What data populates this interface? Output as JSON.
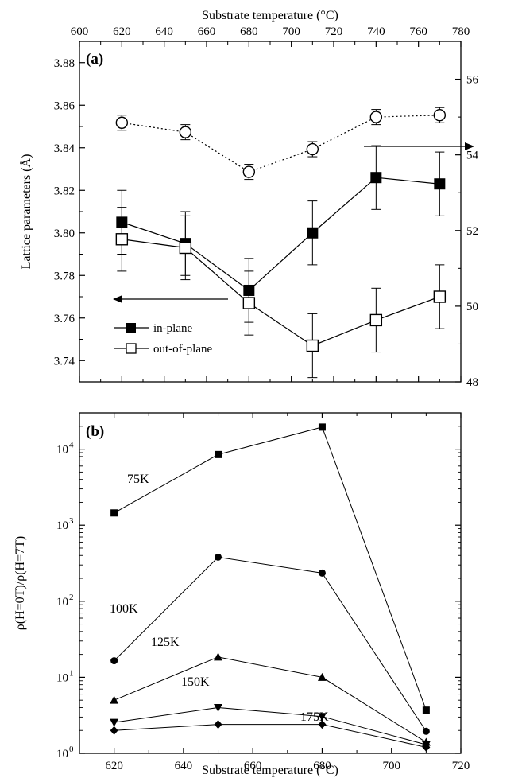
{
  "chart_data": [
    {
      "panel": "(a)",
      "type": "scatter",
      "xlabel_top": "Substrate temperature (°C)",
      "ylabel": "Lattice parameters (Å)",
      "x_ticks": [
        600,
        620,
        640,
        660,
        680,
        700,
        720,
        740,
        760,
        780
      ],
      "xlim": [
        600,
        780
      ],
      "ylim": [
        3.73,
        3.89
      ],
      "y_ticks": [
        3.74,
        3.76,
        3.78,
        3.8,
        3.82,
        3.84,
        3.86,
        3.88
      ],
      "y2lim": [
        48,
        57
      ],
      "y2_ticks": [
        48,
        50,
        52,
        54,
        56
      ],
      "series": [
        {
          "name": "in-plane",
          "marker": "filled-square",
          "axis": "left",
          "x": [
            620,
            650,
            680,
            710,
            740,
            770
          ],
          "y": [
            3.805,
            3.795,
            3.773,
            3.8,
            3.826,
            3.823
          ],
          "err": [
            0.015,
            0.015,
            0.015,
            0.015,
            0.015,
            0.015
          ]
        },
        {
          "name": "out-of-plane",
          "marker": "open-square",
          "axis": "left",
          "x": [
            620,
            650,
            680,
            710,
            740,
            770
          ],
          "y": [
            3.797,
            3.793,
            3.767,
            3.747,
            3.759,
            3.77
          ],
          "err": [
            0.015,
            0.015,
            0.015,
            0.015,
            0.015,
            0.015
          ]
        },
        {
          "marker": "open-circle",
          "axis": "right",
          "line": "dotted",
          "x": [
            620,
            650,
            680,
            710,
            740,
            770
          ],
          "y": [
            54.85,
            54.6,
            53.55,
            54.15,
            55.0,
            55.05
          ],
          "err": [
            0.2,
            0.2,
            0.2,
            0.2,
            0.2,
            0.2
          ]
        }
      ]
    },
    {
      "panel": "(b)",
      "type": "line",
      "xlabel": "Substrate temperature (°C)",
      "ylabel": "ρ(H=0T)/ρ(H=7T)",
      "xlim": [
        610,
        720
      ],
      "x_ticks": [
        620,
        640,
        660,
        680,
        700,
        720
      ],
      "yscale": "log",
      "ylim": [
        1,
        30000
      ],
      "y_ticks": [
        1,
        10,
        100,
        1000,
        10000
      ],
      "y_tick_labels": [
        {
          "base": "10",
          "exp": "0"
        },
        {
          "base": "10",
          "exp": "1"
        },
        {
          "base": "10",
          "exp": "2"
        },
        {
          "base": "10",
          "exp": "3"
        },
        {
          "base": "10",
          "exp": "4"
        }
      ],
      "series": [
        {
          "name": "75K",
          "marker": "square",
          "x": [
            620,
            650,
            680,
            710
          ],
          "y": [
            1450,
            8500,
            19500,
            3.7
          ]
        },
        {
          "name": "100K",
          "marker": "circle",
          "x": [
            620,
            650,
            680,
            710
          ],
          "y": [
            16.5,
            380,
            235,
            1.95
          ]
        },
        {
          "name": "125K",
          "marker": "triangle-up",
          "x": [
            620,
            650,
            680,
            710
          ],
          "y": [
            5.0,
            18.5,
            10.0,
            1.4
          ]
        },
        {
          "name": "150K",
          "marker": "triangle-down",
          "x": [
            620,
            650,
            680,
            710
          ],
          "y": [
            2.55,
            4.0,
            3.05,
            1.3
          ]
        },
        {
          "name": "175K",
          "marker": "diamond",
          "x": [
            620,
            650,
            680,
            710
          ],
          "y": [
            2.0,
            2.4,
            2.4,
            1.2
          ]
        }
      ]
    }
  ]
}
